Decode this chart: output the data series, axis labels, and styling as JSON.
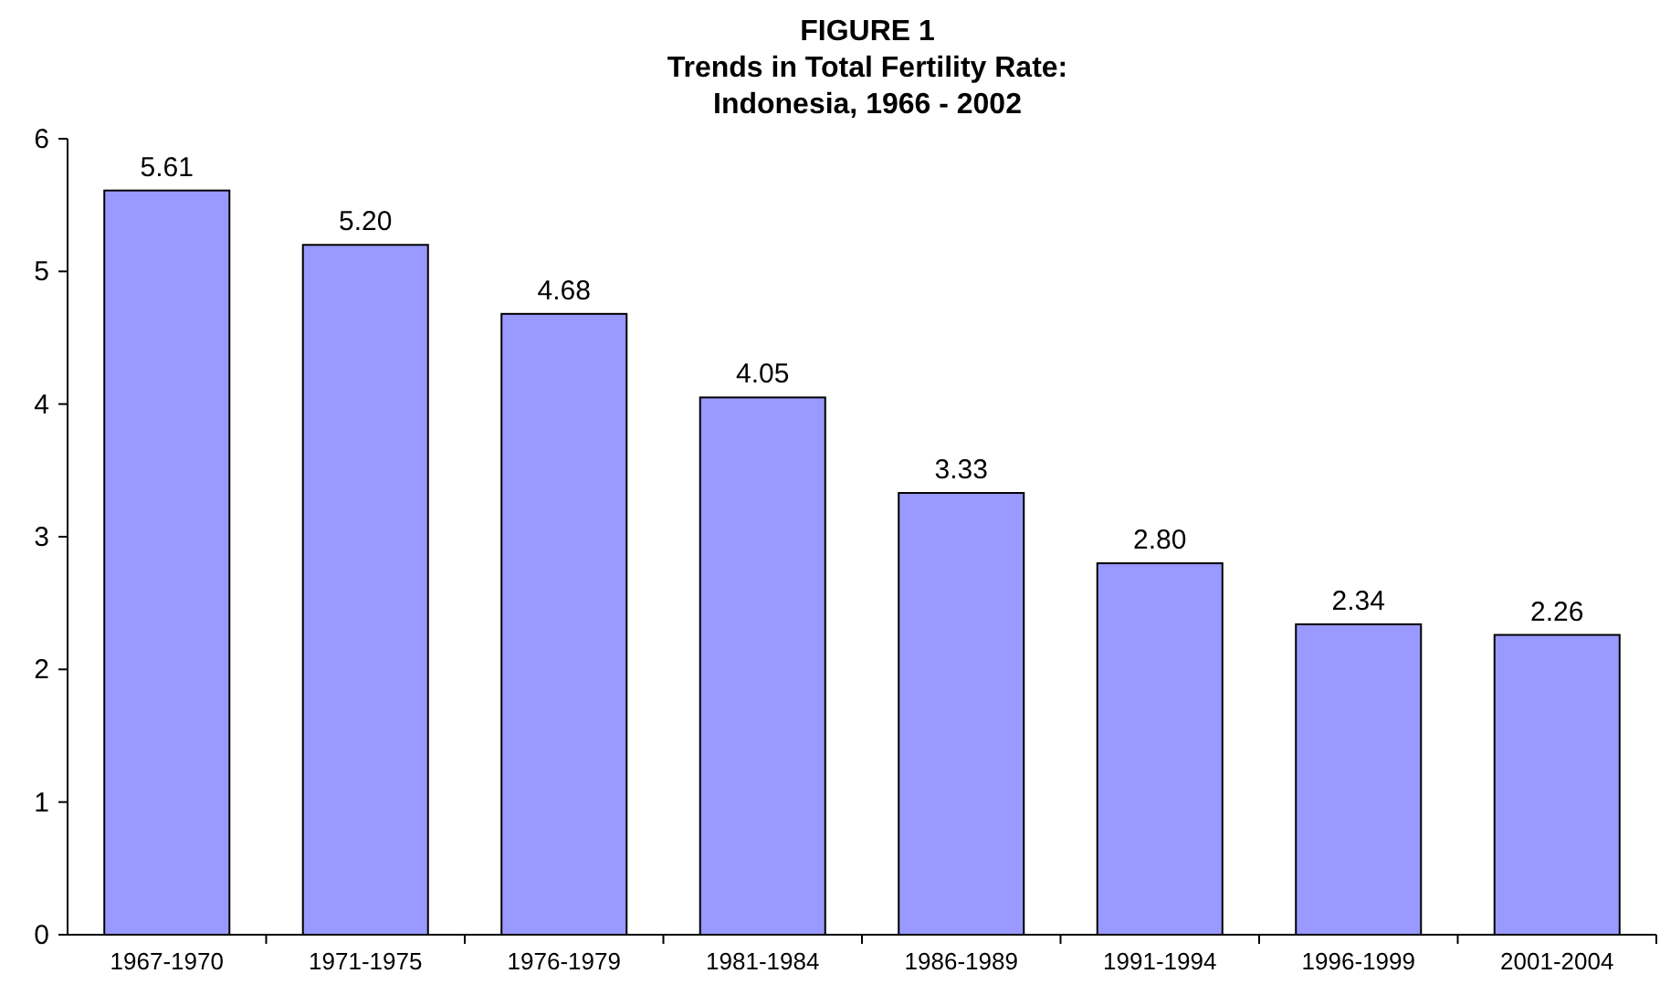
{
  "chart_data": {
    "type": "bar",
    "title": "FIGURE 1\nTrends in Total Fertility Rate:\nIndonesia, 1966 - 2002",
    "categories": [
      "1967-1970",
      "1971-1975",
      "1976-1979",
      "1981-1984",
      "1986-1989",
      "1991-1994",
      "1996-1999",
      "2001-2004"
    ],
    "values": [
      5.61,
      5.2,
      4.68,
      4.05,
      3.33,
      2.8,
      2.34,
      2.26
    ],
    "value_labels": [
      "5.61",
      "5.20",
      "4.68",
      "4.05",
      "3.33",
      "2.80",
      "2.34",
      "2.26"
    ],
    "color": "#9999ff",
    "ylim": [
      0,
      6
    ],
    "yticks": [
      0,
      1,
      2,
      3,
      4,
      5,
      6
    ],
    "grid": false
  }
}
